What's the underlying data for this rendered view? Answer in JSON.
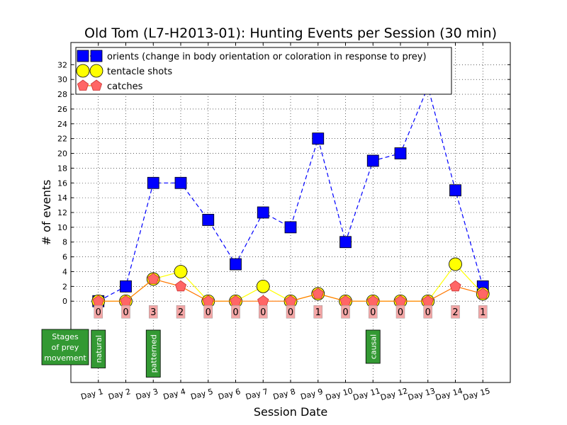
{
  "chart_data": {
    "type": "line",
    "title": "Old Tom (L7-H2013-01): Hunting Events per Session (30 min)",
    "xlabel": "Session Date",
    "ylabel": "# of events",
    "categories": [
      "Day 1",
      "Day 2",
      "Day 3",
      "Day 4",
      "Day 5",
      "Day 6",
      "Day 7",
      "Day 8",
      "Day 9",
      "Day 10",
      "Day 11",
      "Day 12",
      "Day 13",
      "Day 14",
      "Day 15"
    ],
    "yticks": [
      0,
      2,
      4,
      6,
      8,
      10,
      12,
      14,
      16,
      18,
      20,
      22,
      24,
      26,
      28,
      30,
      32
    ],
    "ylim": [
      -11,
      35
    ],
    "grid": true,
    "legend_position": "top-left",
    "series": [
      {
        "name": "orients (change in body orientation or coloration in response to prey)",
        "marker": "square",
        "color": "#0000ff",
        "line": "dashed",
        "values": [
          0,
          2,
          16,
          16,
          11,
          5,
          12,
          10,
          22,
          8,
          19,
          20,
          29,
          15,
          2
        ]
      },
      {
        "name": "tentacle shots",
        "marker": "circle",
        "color": "#ffff00",
        "line": "solid",
        "values": [
          0,
          0,
          3,
          4,
          0,
          0,
          2,
          0,
          1,
          0,
          0,
          0,
          0,
          5,
          1
        ]
      },
      {
        "name": "catches",
        "marker": "pentagon",
        "color": "#ff6666",
        "line": "solid",
        "values": [
          0,
          0,
          3,
          2,
          0,
          0,
          0,
          0,
          1,
          0,
          0,
          0,
          0,
          2,
          1
        ]
      }
    ],
    "catch_labels": [
      "0",
      "0",
      "3",
      "2",
      "0",
      "0",
      "0",
      "0",
      "1",
      "0",
      "0",
      "0",
      "0",
      "2",
      "1"
    ],
    "stages_title": [
      "Stages",
      "of prey",
      "movement"
    ],
    "stage_markers": [
      {
        "day_index": 0,
        "label": "natural"
      },
      {
        "day_index": 2,
        "label": "patterned"
      },
      {
        "day_index": 10,
        "label": "causal"
      }
    ],
    "colors": {
      "stage_box": "#339933",
      "catch_label_bg": "#f4a6a6",
      "catch_line": "#ff7700"
    }
  }
}
